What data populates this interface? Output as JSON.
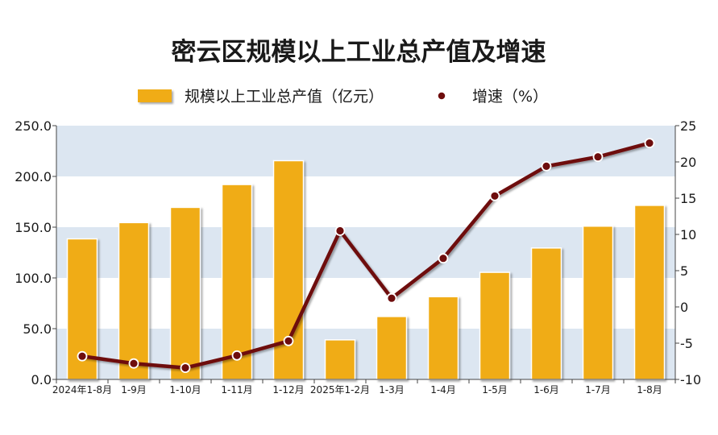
{
  "chart_data": {
    "type": "bar+line",
    "title": "密云区规模以上工业总产值及增速",
    "categories": [
      "2024年1-8月",
      "1-9月",
      "1-10月",
      "1-11月",
      "1-12月",
      "2025年1-2月",
      "1-3月",
      "1-4月",
      "1-5月",
      "1-6月",
      "1-7月",
      "1-8月"
    ],
    "series": [
      {
        "name": "规模以上工业总产值（亿元）",
        "type": "bar",
        "axis": "left",
        "values": [
          138.5,
          154.5,
          169.5,
          192.0,
          215.5,
          39.0,
          62.0,
          81.5,
          105.5,
          129.5,
          151.0,
          171.5
        ]
      },
      {
        "name": "增速（%）",
        "type": "line",
        "axis": "right",
        "values": [
          -6.8,
          -7.8,
          -8.4,
          -6.7,
          -4.7,
          10.5,
          1.2,
          6.7,
          15.3,
          19.4,
          20.7,
          22.6
        ]
      }
    ],
    "y_left": {
      "min": 0,
      "max": 250,
      "ticks": [
        "0.0",
        "50.0",
        "100.0",
        "150.0",
        "200.0",
        "250.0"
      ]
    },
    "y_right": {
      "min": -10,
      "max": 25,
      "ticks": [
        "-10",
        "-5",
        "0",
        "5",
        "10",
        "15",
        "20",
        "25"
      ]
    },
    "legend_position": "top-center",
    "colors": {
      "bar": "#f0ac12",
      "bar_edge": "#d8940a",
      "line": "#6e0d0d",
      "band": "#dce6f1",
      "background": "#ffffff",
      "text": "#1a1a1a",
      "axis": "#444444"
    }
  }
}
